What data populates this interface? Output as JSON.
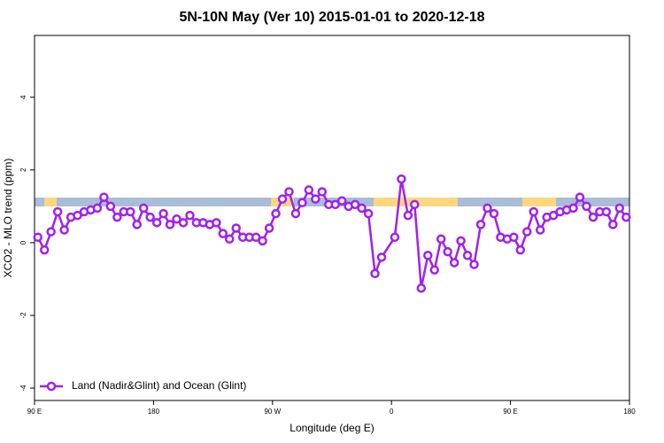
{
  "chart_data": {
    "type": "line",
    "title": "5N-10N May (Ver 10)   2015-01-01 to 2020-12-18",
    "x_label": "Longitude (deg E)",
    "y_label": "XCO2 - MLO trend (ppm)",
    "xlim": [
      90,
      540
    ],
    "xticks": [
      {
        "value": 90,
        "label": "90 E"
      },
      {
        "value": 180,
        "label": "180"
      },
      {
        "value": 270,
        "label": "90 W"
      },
      {
        "value": 360,
        "label": "0"
      },
      {
        "value": 450,
        "label": "90 E"
      },
      {
        "value": 540,
        "label": "180"
      }
    ],
    "ylim": [
      -4.34,
      5.7
    ],
    "yticks": [
      -4,
      -2,
      0,
      2,
      4
    ],
    "legend": "bottom-left",
    "series": [
      {
        "name": "Land (Nadir&Glint) and Ocean (Glint)",
        "color": "#a020f0",
        "x": [
          92.5,
          97.5,
          102.5,
          107.5,
          112.5,
          117.5,
          122.5,
          127.5,
          132.5,
          137.5,
          142.5,
          147.5,
          152.5,
          157.5,
          162.5,
          167.5,
          172.5,
          177.5,
          182.5,
          187.5,
          192.5,
          197.5,
          202.5,
          207.5,
          212.5,
          217.5,
          222.5,
          227.5,
          232.5,
          237.5,
          242.5,
          247.5,
          252.5,
          257.5,
          262.5,
          267.5,
          272.5,
          277.5,
          282.5,
          287.5,
          292.5,
          297.5,
          302.5,
          307.5,
          312.5,
          317.5,
          322.5,
          327.5,
          332.5,
          337.5,
          342.5,
          347.5,
          352.5,
          362.5,
          367.5,
          372.5,
          377.5,
          382.5,
          387.5,
          392.5,
          397.5,
          402.5,
          407.5,
          412.5,
          417.5,
          422.5,
          427.5,
          432.5,
          437.5,
          442.5,
          447.5,
          452.5,
          457.5,
          462.5,
          467.5,
          472.5,
          477.5,
          482.5,
          487.5,
          492.5,
          497.5,
          502.5,
          507.5,
          512.5,
          517.5,
          522.5,
          527.5,
          532.5,
          537.5
        ],
        "values": [
          0.15,
          -0.2,
          0.3,
          0.85,
          0.35,
          0.7,
          0.75,
          0.85,
          0.9,
          0.95,
          1.25,
          1.0,
          0.7,
          0.85,
          0.85,
          0.5,
          0.95,
          0.7,
          0.55,
          0.8,
          0.5,
          0.65,
          0.55,
          0.75,
          0.55,
          0.55,
          0.5,
          0.55,
          0.25,
          0.1,
          0.4,
          0.15,
          0.15,
          0.15,
          0.05,
          0.4,
          0.8,
          1.2,
          1.4,
          0.8,
          1.1,
          1.45,
          1.2,
          1.4,
          1.05,
          1.05,
          1.15,
          1.0,
          1.05,
          0.95,
          0.8,
          -0.85,
          -0.4,
          0.15,
          1.75,
          0.75,
          1.05,
          -1.25,
          -0.35,
          -0.75,
          0.1,
          -0.25,
          -0.55,
          0.05,
          -0.35,
          -0.6,
          0.5,
          0.95,
          0.8,
          0.15,
          0.1,
          0.15,
          -0.2,
          0.3,
          0.85,
          0.35,
          0.7,
          0.75,
          0.85,
          0.9,
          0.95,
          1.25,
          1.0,
          0.7,
          0.85,
          0.85,
          0.5,
          0.95,
          0.7
        ]
      }
    ]
  }
}
